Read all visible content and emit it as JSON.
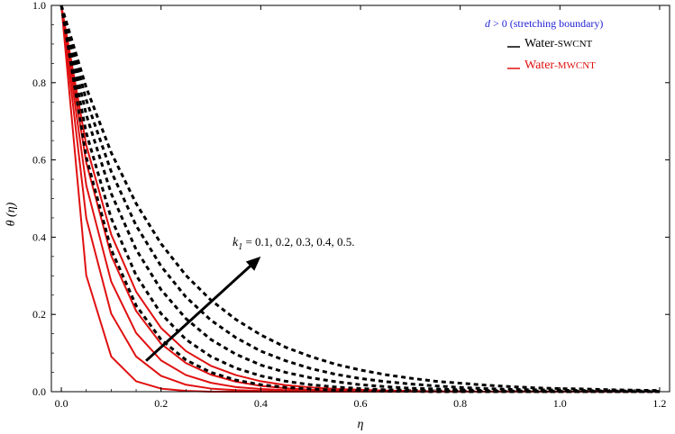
{
  "chart_data": {
    "type": "line",
    "xlabel": "η",
    "ylabel": "θ (η)",
    "xlim": [
      -0.02,
      1.22
    ],
    "ylim": [
      0,
      1.0
    ],
    "xticks": [
      "0.0",
      "0.2",
      "0.4",
      "0.6",
      "0.8",
      "1.0",
      "1.2"
    ],
    "yticks": [
      "0.0",
      "0.2",
      "0.4",
      "0.6",
      "0.8",
      "1.0"
    ],
    "grid": false,
    "legend_position": "top-right",
    "legend": {
      "condition": {
        "symbol": "d",
        "text": " > 0 (stretching boundary)",
        "color": "#1f1fd6"
      },
      "entries": [
        {
          "prefix": "Water",
          "suffix": "-SWCNT",
          "color": "#000000",
          "style": "dashed"
        },
        {
          "prefix": "Water",
          "suffix": "-MWCNT",
          "color": "#e01010",
          "style": "solid"
        }
      ]
    },
    "annotation": {
      "param": "k",
      "param_sub": "1",
      "values_text": " = 0.1, 0.2,  0.3,  0.4,  0.5."
    },
    "arrow": {
      "from": [
        0.17,
        0.08
      ],
      "to": [
        0.4,
        0.35
      ]
    },
    "x": [
      0.0,
      0.05,
      0.1,
      0.15,
      0.2,
      0.25,
      0.3,
      0.35,
      0.4,
      0.45,
      0.5,
      0.55,
      0.6,
      0.65,
      0.7,
      0.75,
      0.8,
      0.85,
      0.9,
      0.95,
      1.0,
      1.05,
      1.1,
      1.15,
      1.2
    ],
    "series": [
      {
        "group": "Water-MWCNT",
        "k1": 0.1,
        "color": "#e01010",
        "style": "solid",
        "values": [
          1.0,
          0.301,
          0.091,
          0.027,
          0.008,
          0.002,
          0.0,
          0.0,
          0.0,
          0.0,
          0.0,
          0.0,
          0.0,
          0.0,
          0.0,
          0.0,
          0.0,
          0.0,
          0.0,
          0.0,
          0.0,
          0.0,
          0.0,
          0.0,
          0.0
        ]
      },
      {
        "group": "Water-MWCNT",
        "k1": 0.2,
        "color": "#e01010",
        "style": "solid",
        "values": [
          1.0,
          0.449,
          0.202,
          0.091,
          0.041,
          0.018,
          0.008,
          0.004,
          0.002,
          0.001,
          0.0,
          0.0,
          0.0,
          0.0,
          0.0,
          0.0,
          0.0,
          0.0,
          0.0,
          0.0,
          0.0,
          0.0,
          0.0,
          0.0,
          0.0
        ]
      },
      {
        "group": "Water-MWCNT",
        "k1": 0.3,
        "color": "#e01010",
        "style": "solid",
        "values": [
          1.0,
          0.534,
          0.285,
          0.152,
          0.081,
          0.043,
          0.023,
          0.012,
          0.007,
          0.004,
          0.002,
          0.001,
          0.0,
          0.0,
          0.0,
          0.0,
          0.0,
          0.0,
          0.0,
          0.0,
          0.0,
          0.0,
          0.0,
          0.0,
          0.0
        ]
      },
      {
        "group": "Water-MWCNT",
        "k1": 0.4,
        "color": "#e01010",
        "style": "solid",
        "values": [
          1.0,
          0.593,
          0.352,
          0.209,
          0.124,
          0.074,
          0.044,
          0.026,
          0.015,
          0.009,
          0.005,
          0.003,
          0.002,
          0.001,
          0.001,
          0.0,
          0.0,
          0.0,
          0.0,
          0.0,
          0.0,
          0.0,
          0.0,
          0.0,
          0.0
        ]
      },
      {
        "group": "Water-MWCNT",
        "k1": 0.5,
        "color": "#e01010",
        "style": "solid",
        "values": [
          1.0,
          0.638,
          0.407,
          0.259,
          0.165,
          0.105,
          0.067,
          0.043,
          0.027,
          0.017,
          0.011,
          0.007,
          0.005,
          0.003,
          0.002,
          0.001,
          0.001,
          0.0,
          0.0,
          0.0,
          0.0,
          0.0,
          0.0,
          0.0,
          0.0
        ]
      },
      {
        "group": "Water-SWCNT",
        "k1": 0.1,
        "color": "#000000",
        "style": "dashed",
        "values": [
          1.0,
          0.607,
          0.368,
          0.223,
          0.135,
          0.082,
          0.05,
          0.03,
          0.018,
          0.011,
          0.007,
          0.004,
          0.002,
          0.001,
          0.001,
          0.0,
          0.0,
          0.0,
          0.0,
          0.0,
          0.0,
          0.0,
          0.0,
          0.0,
          0.0
        ]
      },
      {
        "group": "Water-SWCNT",
        "k1": 0.2,
        "color": "#000000",
        "style": "dashed",
        "values": [
          1.0,
          0.67,
          0.449,
          0.301,
          0.202,
          0.135,
          0.091,
          0.061,
          0.041,
          0.027,
          0.018,
          0.012,
          0.008,
          0.005,
          0.004,
          0.002,
          0.002,
          0.001,
          0.001,
          0.0,
          0.0,
          0.0,
          0.0,
          0.0,
          0.0
        ]
      },
      {
        "group": "Water-SWCNT",
        "k1": 0.3,
        "color": "#000000",
        "style": "dashed",
        "values": [
          1.0,
          0.717,
          0.513,
          0.368,
          0.264,
          0.189,
          0.135,
          0.097,
          0.069,
          0.05,
          0.036,
          0.026,
          0.018,
          0.013,
          0.009,
          0.007,
          0.005,
          0.003,
          0.002,
          0.002,
          0.001,
          0.001,
          0.001,
          0.0,
          0.0
        ]
      },
      {
        "group": "Water-SWCNT",
        "k1": 0.4,
        "color": "#000000",
        "style": "dashed",
        "values": [
          1.0,
          0.755,
          0.57,
          0.43,
          0.325,
          0.245,
          0.185,
          0.14,
          0.105,
          0.08,
          0.06,
          0.045,
          0.034,
          0.026,
          0.02,
          0.015,
          0.011,
          0.008,
          0.006,
          0.005,
          0.004,
          0.003,
          0.002,
          0.002,
          0.001
        ]
      },
      {
        "group": "Water-SWCNT",
        "k1": 0.5,
        "color": "#000000",
        "style": "dashed",
        "values": [
          1.0,
          0.787,
          0.619,
          0.487,
          0.383,
          0.301,
          0.237,
          0.187,
          0.147,
          0.115,
          0.091,
          0.071,
          0.056,
          0.044,
          0.035,
          0.027,
          0.022,
          0.017,
          0.013,
          0.01,
          0.008,
          0.007,
          0.005,
          0.004,
          0.003
        ]
      }
    ]
  }
}
